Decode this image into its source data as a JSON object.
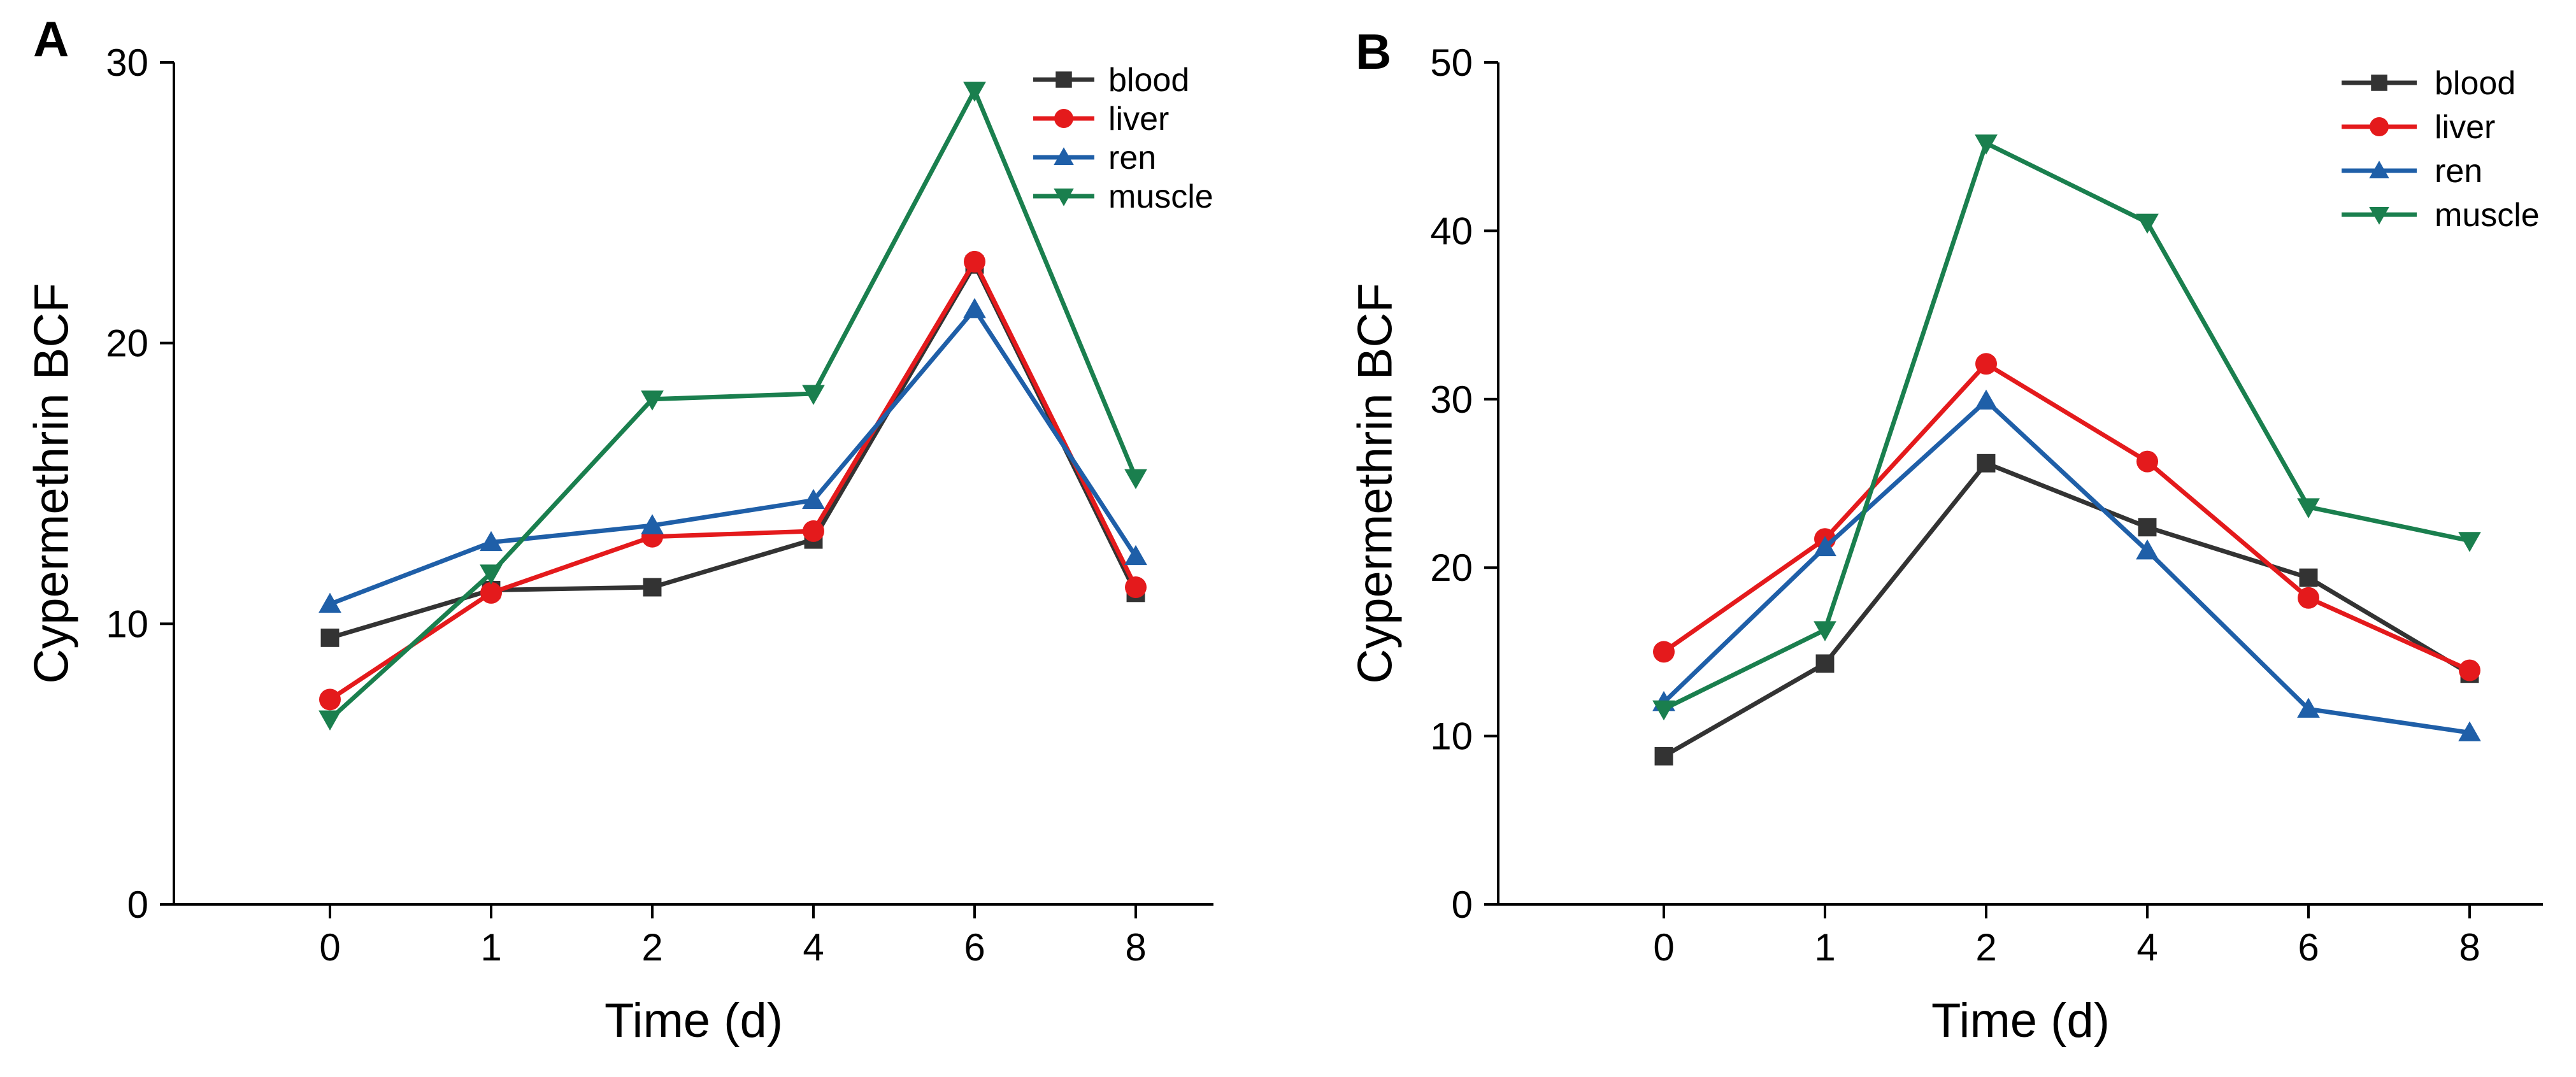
{
  "chart_data": [
    {
      "panel": "A",
      "type": "line",
      "categories": [
        "0",
        "1",
        "2",
        "4",
        "6",
        "8"
      ],
      "xlabel": "Time (d)",
      "ylabel": "Cypermethrin BCF",
      "ylim": [
        0,
        30
      ],
      "yticks": [
        "0",
        "10",
        "20",
        "30"
      ],
      "legend_position": "top-right",
      "series": [
        {
          "name": "blood",
          "color": "#333333",
          "marker": "square",
          "values": [
            9.5,
            11.2,
            11.3,
            13.0,
            22.8,
            11.1
          ]
        },
        {
          "name": "liver",
          "color": "#e41a1c",
          "marker": "circle",
          "values": [
            7.3,
            11.1,
            13.1,
            13.3,
            22.9,
            11.3
          ]
        },
        {
          "name": "ren",
          "color": "#1f5fa8",
          "marker": "triangle-up",
          "values": [
            10.7,
            12.9,
            13.5,
            14.4,
            21.2,
            12.4
          ]
        },
        {
          "name": "muscle",
          "color": "#1a7f4e",
          "marker": "triangle-down",
          "values": [
            6.6,
            11.8,
            18.0,
            18.2,
            29.0,
            15.2
          ]
        }
      ]
    },
    {
      "panel": "B",
      "type": "line",
      "categories": [
        "0",
        "1",
        "2",
        "4",
        "6",
        "8"
      ],
      "xlabel": "Time (d)",
      "ylabel": "Cypermethrin BCF",
      "ylim": [
        0,
        50
      ],
      "yticks": [
        "0",
        "10",
        "20",
        "30",
        "40",
        "50"
      ],
      "legend_position": "top-right",
      "series": [
        {
          "name": "blood",
          "color": "#333333",
          "marker": "square",
          "values": [
            8.8,
            14.3,
            26.2,
            22.4,
            19.4,
            13.7
          ]
        },
        {
          "name": "liver",
          "color": "#e41a1c",
          "marker": "circle",
          "values": [
            15.0,
            21.7,
            32.1,
            26.3,
            18.2,
            13.9
          ]
        },
        {
          "name": "ren",
          "color": "#1f5fa8",
          "marker": "triangle-up",
          "values": [
            12.0,
            21.2,
            29.9,
            21.0,
            11.6,
            10.2
          ]
        },
        {
          "name": "muscle",
          "color": "#1a7f4e",
          "marker": "triangle-down",
          "values": [
            11.6,
            16.3,
            45.2,
            40.5,
            23.6,
            21.6
          ]
        }
      ]
    }
  ]
}
